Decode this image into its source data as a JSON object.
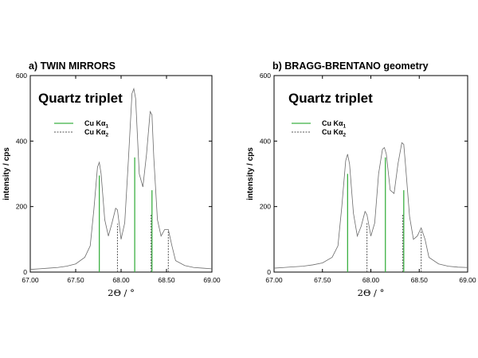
{
  "chart_data": [
    {
      "type": "line",
      "title": "a) TWIN MIRRORS",
      "annotation": "Quartz triplet",
      "xlabel": "2Θ / °",
      "ylabel": "intensity / cps",
      "xlim": [
        67.0,
        69.0
      ],
      "ylim": [
        0,
        600
      ],
      "xticks": [
        "67.00",
        "67.50",
        "68.00",
        "68.50",
        "69.00"
      ],
      "yticks": [
        "0",
        "200",
        "400",
        "600"
      ],
      "legend": {
        "placement": "upper-left",
        "entries": [
          "Cu Kα₁",
          "Cu Kα₂"
        ]
      },
      "colors": {
        "curve": "#6b6b6b",
        "kalpha1": "#3cb043",
        "kalpha2": "#555555"
      },
      "series": [
        {
          "values": [
            [
              67.0,
              8
            ],
            [
              67.1,
              10
            ],
            [
              67.2,
              12
            ],
            [
              67.3,
              14
            ],
            [
              67.4,
              18
            ],
            [
              67.5,
              25
            ],
            [
              67.6,
              45
            ],
            [
              67.66,
              80
            ],
            [
              67.7,
              190
            ],
            [
              67.74,
              320
            ],
            [
              67.76,
              335
            ],
            [
              67.78,
              300
            ],
            [
              67.82,
              160
            ],
            [
              67.86,
              110
            ],
            [
              67.9,
              150
            ],
            [
              67.94,
              195
            ],
            [
              67.96,
              190
            ],
            [
              68.0,
              100
            ],
            [
              68.04,
              150
            ],
            [
              68.08,
              340
            ],
            [
              68.12,
              545
            ],
            [
              68.14,
              560
            ],
            [
              68.16,
              530
            ],
            [
              68.2,
              300
            ],
            [
              68.24,
              260
            ],
            [
              68.28,
              360
            ],
            [
              68.32,
              490
            ],
            [
              68.34,
              480
            ],
            [
              68.36,
              350
            ],
            [
              68.4,
              160
            ],
            [
              68.44,
              110
            ],
            [
              68.48,
              130
            ],
            [
              68.52,
              130
            ],
            [
              68.56,
              80
            ],
            [
              68.6,
              35
            ],
            [
              68.7,
              20
            ],
            [
              68.8,
              14
            ],
            [
              68.9,
              12
            ],
            [
              69.0,
              10
            ]
          ]
        },
        {
          "name": "Cu Kα₁",
          "x": [
            67.76,
            68.15,
            68.34
          ],
          "values": [
            295,
            350,
            250
          ]
        },
        {
          "name": "Cu Kα₂",
          "x": [
            67.96,
            68.33,
            68.52
          ],
          "values": [
            148,
            175,
            125
          ]
        }
      ]
    },
    {
      "type": "line",
      "title": "b) BRAGG-BRENTANO geometry",
      "annotation": "Quartz triplet",
      "xlabel": "2Θ / °",
      "ylabel": "intensity / cps",
      "xlim": [
        67.0,
        69.0
      ],
      "ylim": [
        0,
        600
      ],
      "xticks": [
        "67.00",
        "67.50",
        "68.00",
        "68.50",
        "69.00"
      ],
      "yticks": [
        "0",
        "200",
        "400",
        "600"
      ],
      "legend": {
        "placement": "upper-left",
        "entries": [
          "Cu Kα₁",
          "Cu Kα₂"
        ]
      },
      "colors": {
        "curve": "#6b6b6b",
        "kalpha1": "#3cb043",
        "kalpha2": "#555555"
      },
      "series": [
        {
          "values": [
            [
              67.0,
              12
            ],
            [
              67.1,
              14
            ],
            [
              67.2,
              16
            ],
            [
              67.3,
              18
            ],
            [
              67.4,
              22
            ],
            [
              67.5,
              28
            ],
            [
              67.6,
              45
            ],
            [
              67.66,
              80
            ],
            [
              67.7,
              200
            ],
            [
              67.74,
              340
            ],
            [
              67.76,
              360
            ],
            [
              67.78,
              330
            ],
            [
              67.82,
              180
            ],
            [
              67.86,
              110
            ],
            [
              67.9,
              140
            ],
            [
              67.94,
              185
            ],
            [
              67.96,
              175
            ],
            [
              68.0,
              110
            ],
            [
              68.04,
              150
            ],
            [
              68.08,
              300
            ],
            [
              68.12,
              375
            ],
            [
              68.14,
              380
            ],
            [
              68.16,
              360
            ],
            [
              68.2,
              250
            ],
            [
              68.24,
              240
            ],
            [
              68.28,
              330
            ],
            [
              68.32,
              395
            ],
            [
              68.34,
              390
            ],
            [
              68.36,
              320
            ],
            [
              68.4,
              170
            ],
            [
              68.44,
              100
            ],
            [
              68.48,
              110
            ],
            [
              68.52,
              135
            ],
            [
              68.56,
              100
            ],
            [
              68.6,
              45
            ],
            [
              68.7,
              25
            ],
            [
              68.8,
              18
            ],
            [
              68.9,
              15
            ],
            [
              69.0,
              14
            ]
          ]
        },
        {
          "name": "Cu Kα₁",
          "x": [
            67.76,
            68.15,
            68.34
          ],
          "values": [
            300,
            350,
            250
          ]
        },
        {
          "name": "Cu Kα₂",
          "x": [
            67.96,
            68.33,
            68.52
          ],
          "values": [
            150,
            175,
            125
          ]
        }
      ]
    }
  ]
}
